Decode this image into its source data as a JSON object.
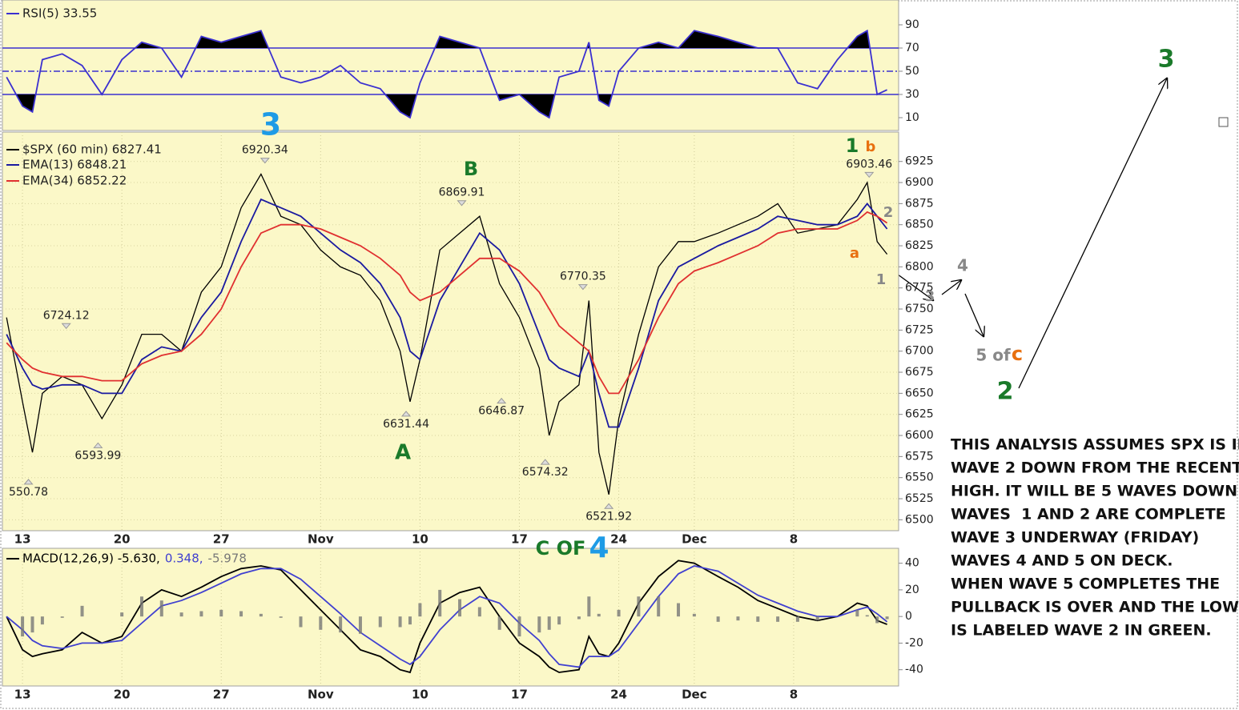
{
  "chart_data": [
    {
      "type": "line",
      "xlim": [
        -0.93,
        44
      ],
      "ylim": [
        0,
        100
      ],
      "yticks": [
        10,
        30,
        50,
        70,
        90
      ],
      "levels": [
        30,
        50,
        70
      ],
      "fill_color": "#000000",
      "x": [
        -0.8,
        0,
        0.5,
        1,
        2,
        3,
        4,
        5,
        6,
        7,
        8,
        9,
        10,
        11,
        12,
        13,
        14,
        15,
        16,
        17,
        18,
        19,
        19.5,
        20,
        21,
        22,
        23,
        24,
        25,
        26,
        26.5,
        27,
        28,
        28.5,
        29,
        29.5,
        30,
        31,
        32,
        33,
        33.8,
        35,
        36,
        37,
        38,
        39,
        40,
        41,
        42,
        42.5,
        43,
        43.5
      ],
      "series": [
        {
          "name": "RSI(5) 33.55",
          "color": "#3b30d0",
          "values": [
            45,
            20,
            15,
            60,
            65,
            55,
            30,
            60,
            75,
            70,
            45,
            80,
            75,
            80,
            85,
            45,
            40,
            45,
            55,
            40,
            35,
            15,
            10,
            40,
            80,
            75,
            70,
            25,
            30,
            15,
            10,
            45,
            50,
            75,
            25,
            20,
            50,
            70,
            75,
            70,
            85,
            80,
            75,
            70,
            70,
            40,
            35,
            60,
            80,
            85,
            30,
            34
          ]
        }
      ]
    },
    {
      "type": "line",
      "xlim": [
        -0.93,
        44
      ],
      "ylim": [
        6488,
        6957
      ],
      "grid": true,
      "yticks": [
        6500,
        6525,
        6550,
        6575,
        6600,
        6625,
        6650,
        6675,
        6700,
        6725,
        6750,
        6775,
        6800,
        6825,
        6850,
        6875,
        6900,
        6925
      ],
      "xticks": [
        {
          "value": 0,
          "label": "13"
        },
        {
          "value": 5,
          "label": "20"
        },
        {
          "value": 10,
          "label": "27"
        },
        {
          "value": 15,
          "label": "Nov"
        },
        {
          "value": 20,
          "label": "10"
        },
        {
          "value": 25,
          "label": "17"
        },
        {
          "value": 30,
          "label": "24"
        },
        {
          "value": 33.8,
          "label": "Dec"
        },
        {
          "value": 38.8,
          "label": "8"
        }
      ],
      "x": [
        -0.8,
        0,
        0.5,
        1,
        2,
        3,
        4,
        5,
        6,
        7,
        8,
        9,
        10,
        11,
        12,
        13,
        14,
        15,
        16,
        17,
        18,
        19,
        19.5,
        20,
        21,
        22,
        23,
        24,
        25,
        26,
        26.5,
        27,
        28,
        28.5,
        29,
        29.5,
        30,
        31,
        32,
        33,
        33.8,
        35,
        36,
        37,
        38,
        39,
        40,
        41,
        42,
        42.5,
        43,
        43.5
      ],
      "series": [
        {
          "name": "$SPX (60 min) 6827.41",
          "color": "#000000",
          "values": [
            6740,
            6640,
            6580,
            6650,
            6670,
            6660,
            6620,
            6660,
            6720,
            6720,
            6700,
            6770,
            6800,
            6870,
            6910,
            6860,
            6850,
            6820,
            6800,
            6790,
            6760,
            6700,
            6640,
            6690,
            6820,
            6840,
            6860,
            6780,
            6740,
            6680,
            6600,
            6640,
            6660,
            6760,
            6580,
            6530,
            6620,
            6720,
            6800,
            6830,
            6830,
            6840,
            6850,
            6860,
            6875,
            6840,
            6845,
            6850,
            6880,
            6900,
            6830,
            6815
          ]
        },
        {
          "name": "EMA(13) 6848.21",
          "color": "#1a1aa0",
          "values": [
            6720,
            6680,
            6660,
            6655,
            6660,
            6660,
            6650,
            6650,
            6690,
            6705,
            6700,
            6740,
            6770,
            6830,
            6880,
            6870,
            6860,
            6840,
            6820,
            6805,
            6780,
            6740,
            6700,
            6690,
            6760,
            6800,
            6840,
            6820,
            6780,
            6720,
            6690,
            6680,
            6670,
            6700,
            6650,
            6610,
            6610,
            6680,
            6760,
            6800,
            6810,
            6825,
            6835,
            6845,
            6860,
            6855,
            6850,
            6850,
            6860,
            6875,
            6860,
            6845
          ]
        },
        {
          "name": "EMA(34) 6852.22",
          "color": "#e03030",
          "values": [
            6710,
            6690,
            6680,
            6675,
            6670,
            6670,
            6665,
            6665,
            6685,
            6695,
            6700,
            6720,
            6750,
            6800,
            6840,
            6850,
            6850,
            6845,
            6835,
            6825,
            6810,
            6790,
            6770,
            6760,
            6770,
            6790,
            6810,
            6810,
            6795,
            6770,
            6750,
            6730,
            6710,
            6700,
            6670,
            6650,
            6650,
            6690,
            6740,
            6780,
            6795,
            6805,
            6815,
            6825,
            6840,
            6845,
            6845,
            6845,
            6855,
            6865,
            6860,
            6852
          ]
        }
      ],
      "annotations": [
        {
          "label": "6920.34",
          "x": 12.2,
          "value": 6920.34
        },
        {
          "label": "6724.12",
          "x": 2.2,
          "value": 6724.12
        },
        {
          "label": "6593.99",
          "x": 3.8,
          "value": 6593.99
        },
        {
          "label": "550.78",
          "x": 0.3,
          "value": 6550.78
        },
        {
          "label": "6869.91",
          "x": 22.1,
          "value": 6869.91
        },
        {
          "label": "6631.44",
          "x": 19.3,
          "value": 6631.44
        },
        {
          "label": "6646.87",
          "x": 24.1,
          "value": 6646.87
        },
        {
          "label": "6770.35",
          "x": 28.2,
          "value": 6770.35
        },
        {
          "label": "6574.32",
          "x": 26.3,
          "value": 6574.32
        },
        {
          "label": "6521.92",
          "x": 29.5,
          "value": 6521.92
        },
        {
          "label": "6903.46",
          "x": 42.6,
          "value": 6903.46
        }
      ]
    },
    {
      "type": "line",
      "xlim": [
        -0.93,
        44
      ],
      "ylim": [
        -51,
        50
      ],
      "yticks": [
        -40,
        -20,
        0,
        20,
        40
      ],
      "xticks": [
        {
          "value": 0,
          "label": "13"
        },
        {
          "value": 5,
          "label": "20"
        },
        {
          "value": 10,
          "label": "27"
        },
        {
          "value": 15,
          "label": "Nov"
        },
        {
          "value": 20,
          "label": "10"
        },
        {
          "value": 25,
          "label": "17"
        },
        {
          "value": 30,
          "label": "24"
        },
        {
          "value": 33.8,
          "label": "Dec"
        },
        {
          "value": 38.8,
          "label": "8"
        }
      ],
      "x": [
        -0.8,
        0,
        0.5,
        1,
        2,
        3,
        4,
        5,
        6,
        7,
        8,
        9,
        10,
        11,
        12,
        13,
        14,
        15,
        16,
        17,
        18,
        19,
        19.5,
        20,
        21,
        22,
        23,
        24,
        25,
        26,
        26.5,
        27,
        28,
        28.5,
        29,
        29.5,
        30,
        31,
        32,
        33,
        33.8,
        35,
        36,
        37,
        38,
        39,
        40,
        41,
        42,
        42.5,
        43,
        43.5
      ],
      "series": [
        {
          "name": "MACD(12,26,9) -5.630,",
          "color": "#000000",
          "values": [
            0,
            -25,
            -30,
            -28,
            -25,
            -12,
            -20,
            -15,
            10,
            20,
            15,
            22,
            30,
            36,
            38,
            35,
            20,
            5,
            -10,
            -25,
            -30,
            -40,
            -42,
            -20,
            10,
            18,
            22,
            0,
            -20,
            -30,
            -38,
            -42,
            -40,
            -15,
            -28,
            -30,
            -20,
            10,
            30,
            42,
            40,
            30,
            22,
            12,
            6,
            0,
            -3,
            0,
            10,
            8,
            -3,
            -6
          ]
        },
        {
          "name": "0.348,",
          "color": "#4040d0",
          "values": [
            0,
            -10,
            -18,
            -22,
            -24,
            -20,
            -20,
            -18,
            -5,
            8,
            12,
            18,
            25,
            32,
            36,
            36,
            28,
            15,
            2,
            -12,
            -22,
            -32,
            -36,
            -30,
            -10,
            5,
            15,
            10,
            -5,
            -18,
            -28,
            -36,
            -38,
            -30,
            -30,
            -30,
            -25,
            -5,
            15,
            32,
            38,
            34,
            25,
            16,
            10,
            4,
            0,
            0,
            5,
            7,
            2,
            -4
          ]
        },
        {
          "name": "-5.978",
          "color": "#777777",
          "type": "bar",
          "values": [
            0,
            -15,
            -12,
            -6,
            -1,
            8,
            0,
            3,
            15,
            12,
            3,
            4,
            5,
            4,
            2,
            -1,
            -8,
            -10,
            -12,
            -13,
            -8,
            -8,
            -6,
            10,
            20,
            13,
            7,
            -10,
            -15,
            -12,
            -10,
            -6,
            -2,
            15,
            2,
            0,
            5,
            15,
            15,
            10,
            2,
            -4,
            -3,
            -4,
            -4,
            -4,
            -3,
            0,
            5,
            1,
            -5,
            -2
          ]
        }
      ]
    }
  ],
  "wave_labels": [
    {
      "text": "3",
      "color": "#1e9be6"
    },
    {
      "text": "B",
      "color": "#1a7a2a"
    },
    {
      "text": "A",
      "color": "#1a7a2a"
    },
    {
      "text": "C OF",
      "color": "#1a7a2a"
    },
    {
      "text": "4",
      "color": "#1e9be6"
    },
    {
      "text": "1",
      "color": "#1a7a2a"
    },
    {
      "text": "b",
      "color": "#e87010"
    },
    {
      "text": "2",
      "color": "#888888"
    },
    {
      "text": "a",
      "color": "#e87010"
    },
    {
      "text": "1",
      "color": "#888888"
    },
    {
      "text": "3",
      "color": "#888888"
    },
    {
      "text": "4",
      "color": "#888888"
    },
    {
      "text": "5 of",
      "color": "#888888"
    },
    {
      "text": "c",
      "color": "#e87010"
    },
    {
      "text": "2",
      "color": "#1a7a2a"
    },
    {
      "text": "3",
      "color": "#1a7a2a"
    }
  ],
  "commentary": [
    "THIS ANALYSIS ASSUMES SPX IS IN",
    "WAVE 2 DOWN FROM THE RECENT",
    "HIGH. IT WILL BE 5 WAVES DOWN",
    "WAVES  1 AND 2 ARE COMPLETE",
    "WAVE 3 UNDERWAY (FRIDAY)",
    "WAVES 4 AND 5 ON DECK.",
    "WHEN WAVE 5 COMPLETES THE",
    "PULLBACK IS OVER AND THE LOW",
    "IS LABELED WAVE 2 IN GREEN."
  ]
}
